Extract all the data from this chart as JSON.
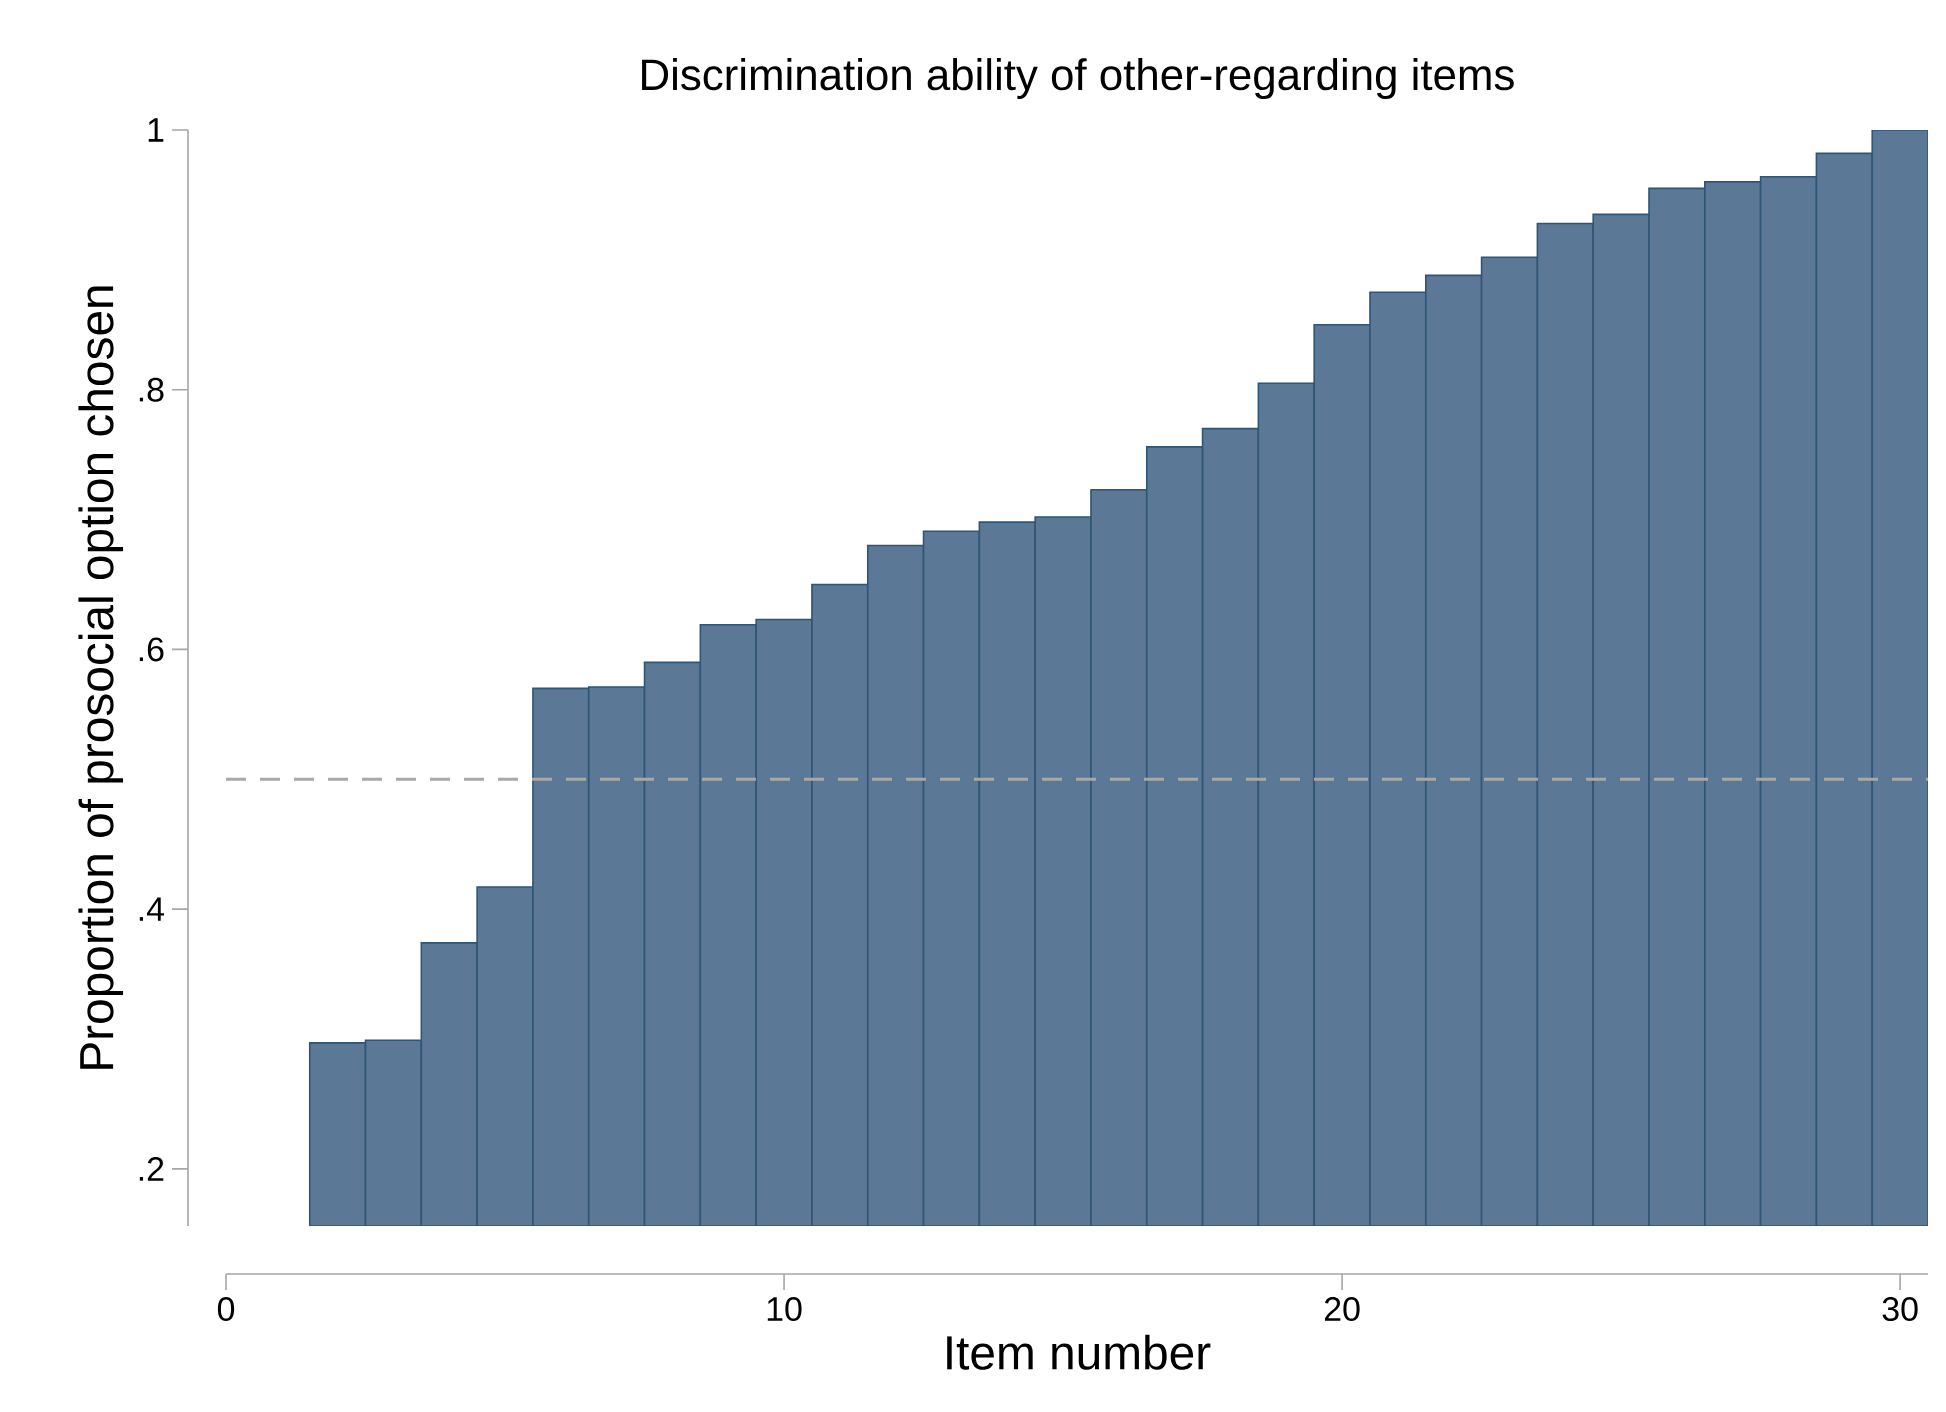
{
  "chart_data": {
    "type": "bar",
    "title": "Discrimination ability of other-regarding items",
    "xlabel": "Item number",
    "ylabel": "Proportion of prosocial option chosen",
    "x": [
      2,
      3,
      4,
      5,
      6,
      7,
      8,
      9,
      10,
      11,
      12,
      13,
      14,
      15,
      16,
      17,
      18,
      19,
      20,
      21,
      22,
      23,
      24,
      25,
      26,
      27,
      28,
      29,
      30
    ],
    "values": [
      0.297,
      0.299,
      0.374,
      0.417,
      0.57,
      0.571,
      0.59,
      0.619,
      0.623,
      0.65,
      0.68,
      0.691,
      0.698,
      0.702,
      0.723,
      0.756,
      0.77,
      0.805,
      0.85,
      0.875,
      0.888,
      0.902,
      0.928,
      0.935,
      0.955,
      0.96,
      0.964,
      0.982,
      1.0
    ],
    "color": "#5b7896",
    "xlim": [
      0,
      30.5
    ],
    "ylim": [
      0.156,
      1
    ],
    "xticks": [
      0,
      10,
      20,
      30
    ],
    "yticks": [
      {
        "value": 0.2,
        "label": ".2"
      },
      {
        "value": 0.4,
        "label": ".4"
      },
      {
        "value": 0.6,
        "label": ".6"
      },
      {
        "value": 0.8,
        "label": ".8"
      },
      1
    ],
    "ref_lines": [
      {
        "axis": "y",
        "value": 0.5,
        "color": "#a8a8a8",
        "line_style": "dashed"
      }
    ]
  }
}
